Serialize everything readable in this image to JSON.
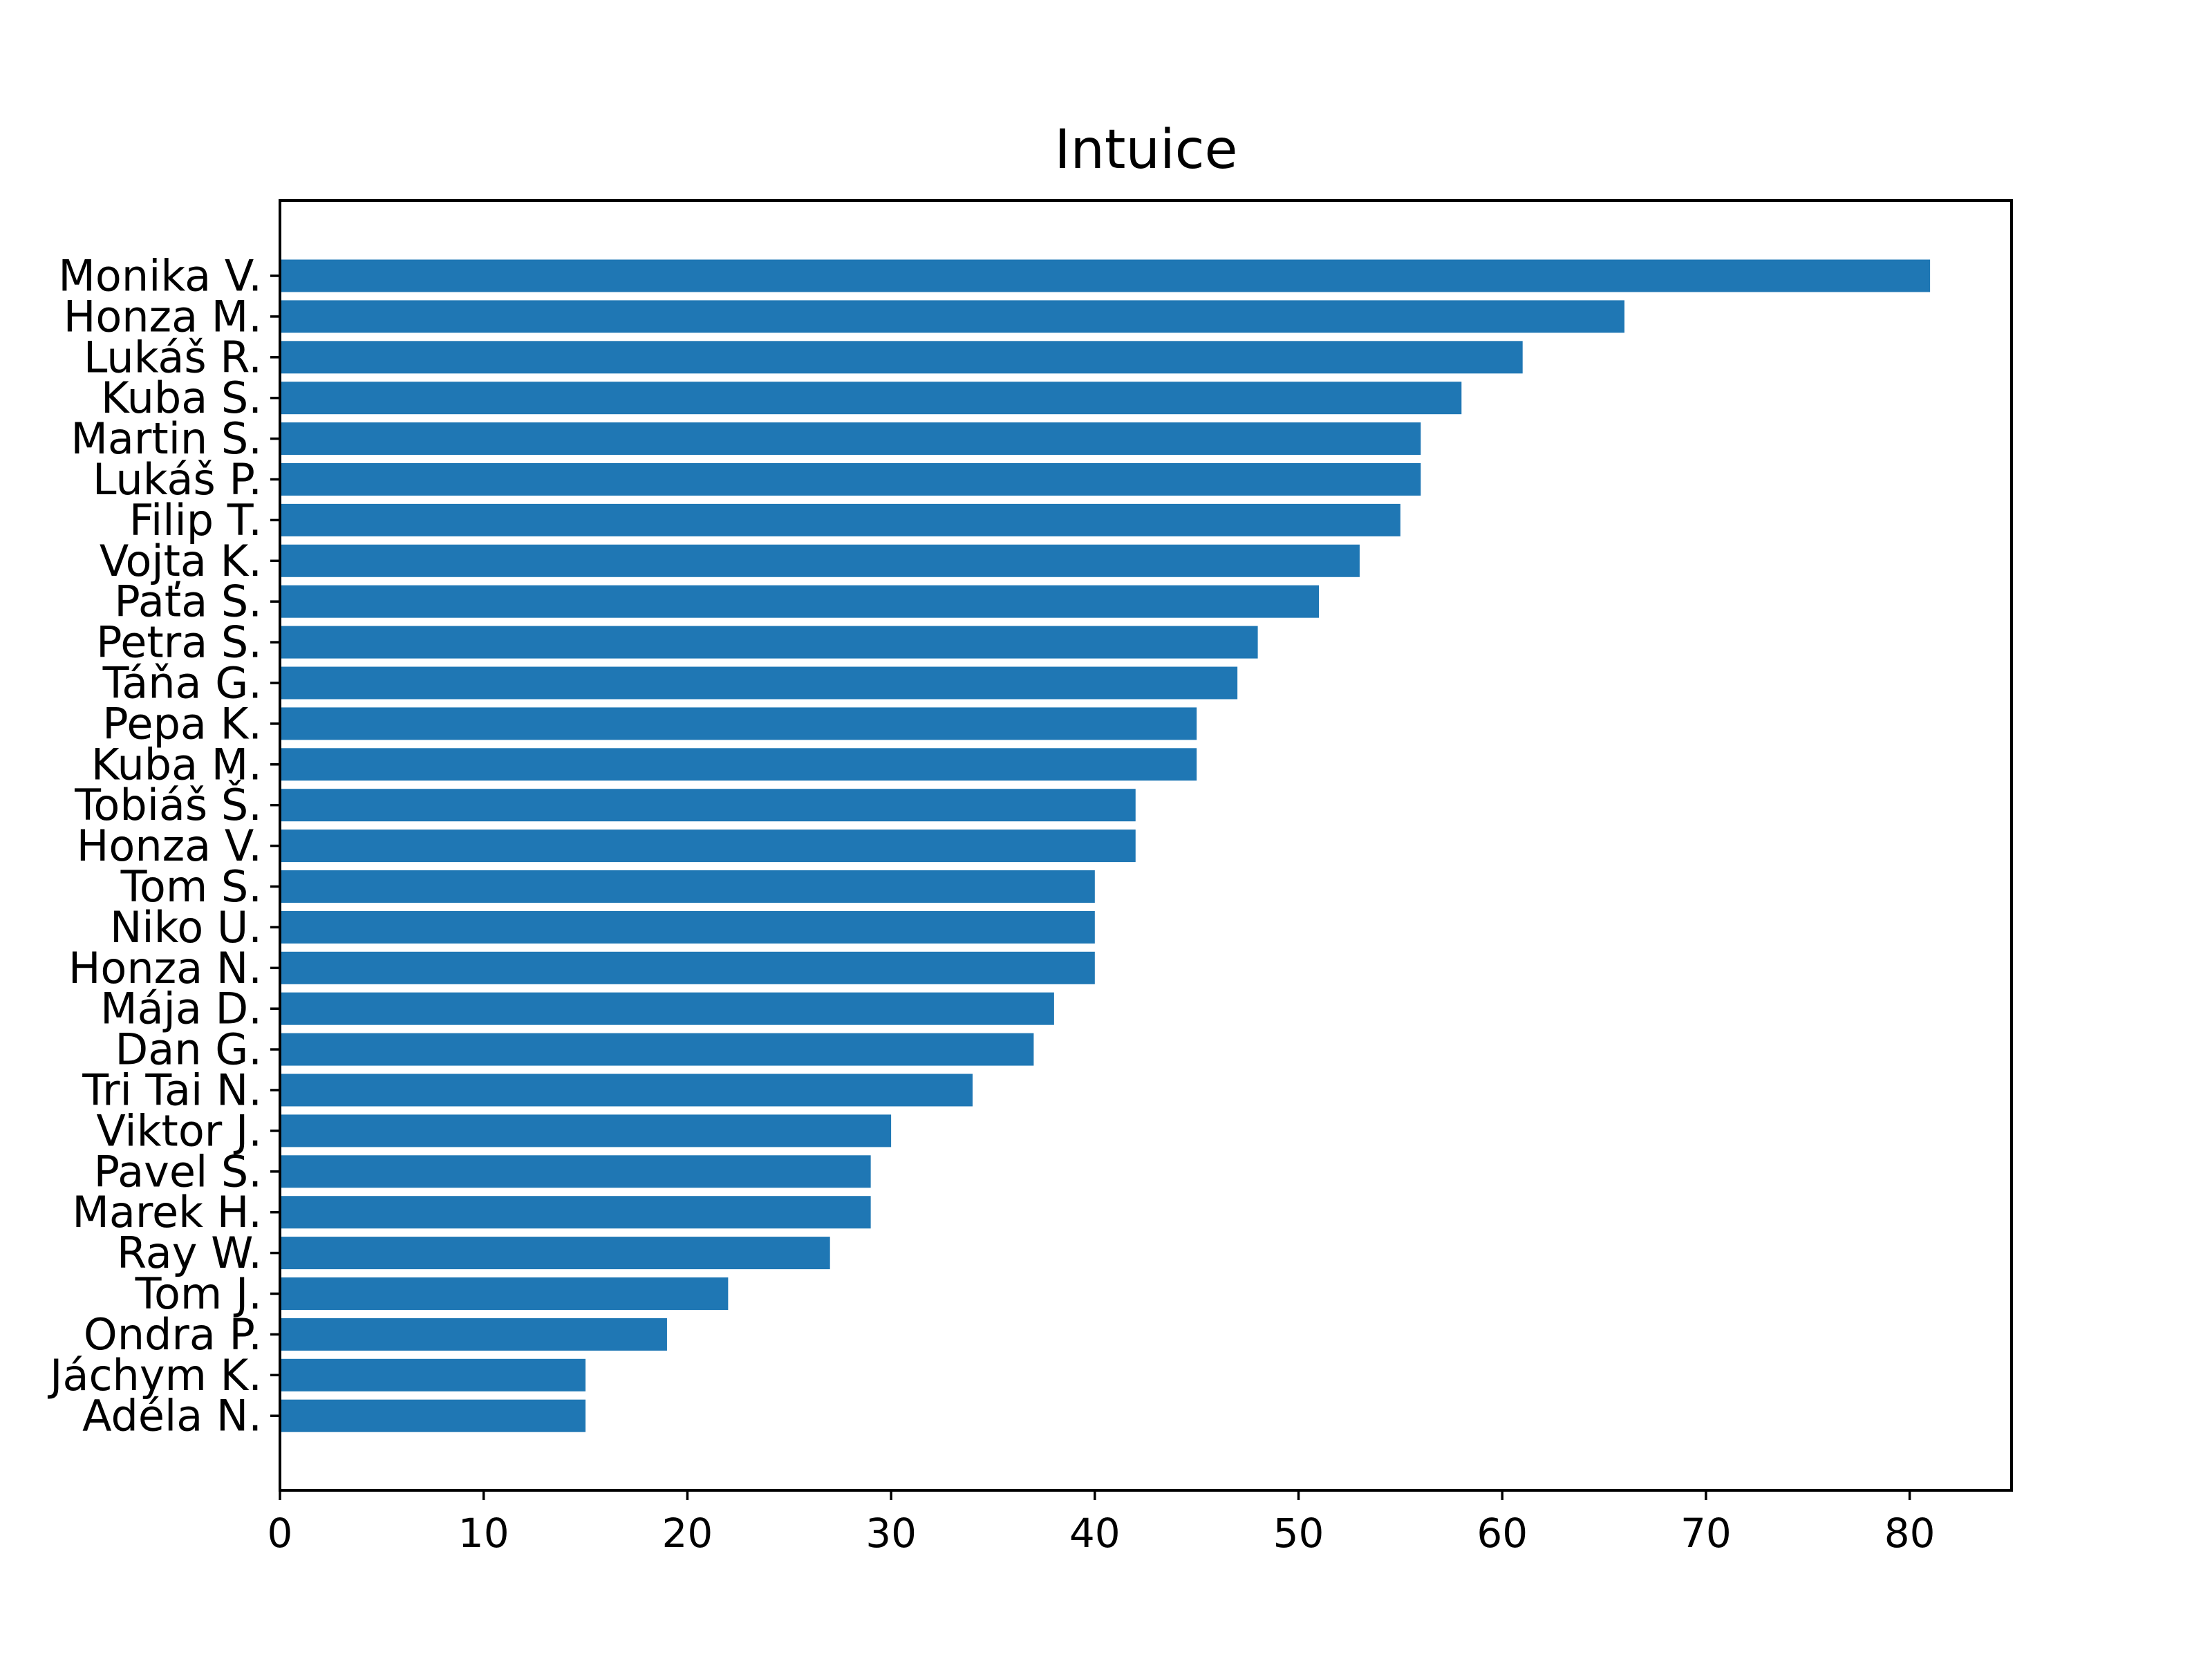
{
  "chart_data": {
    "type": "bar",
    "orientation": "horizontal",
    "title": "Intuice",
    "xlabel": "",
    "ylabel": "",
    "xlim": [
      0,
      85
    ],
    "x_ticks": [
      0,
      10,
      20,
      30,
      40,
      50,
      60,
      70,
      80
    ],
    "grid": false,
    "legend": "none",
    "bar_color": "#1f77b4",
    "categories": [
      "Monika V.",
      "Honza M.",
      "Lukáš R.",
      "Kuba S.",
      "Martin S.",
      "Lukáš P.",
      "Filip T.",
      "Vojta K.",
      "Paťa S.",
      "Petra S.",
      "Táňa G.",
      "Pepa K.",
      "Kuba M.",
      "Tobiáš Š.",
      "Honza V.",
      "Tom S.",
      "Niko U.",
      "Honza N.",
      "Mája D.",
      "Dan G.",
      "Tri Tai N.",
      "Viktor J.",
      "Pavel S.",
      "Marek H.",
      "Ray W.",
      "Tom J.",
      "Ondra P.",
      "Jáchym K.",
      "Adéla N."
    ],
    "values": [
      81,
      66,
      61,
      58,
      56,
      56,
      55,
      53,
      51,
      48,
      47,
      45,
      45,
      42,
      42,
      40,
      40,
      40,
      38,
      37,
      34,
      30,
      29,
      29,
      27,
      22,
      19,
      15,
      15
    ]
  }
}
